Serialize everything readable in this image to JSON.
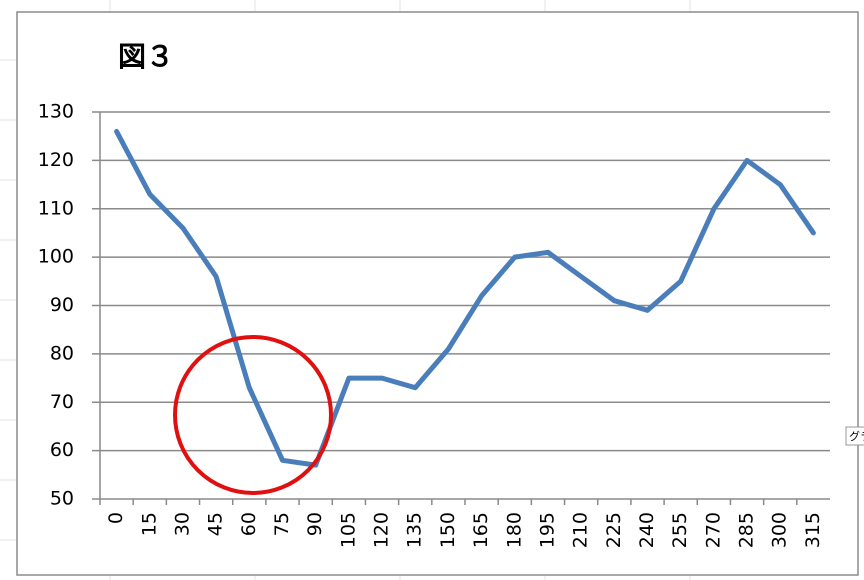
{
  "chart_data": {
    "type": "line",
    "title": "図３",
    "categories": [
      "0",
      "15",
      "30",
      "45",
      "60",
      "75",
      "90",
      "105",
      "120",
      "135",
      "150",
      "165",
      "180",
      "195",
      "210",
      "225",
      "240",
      "255",
      "270",
      "285",
      "300",
      "315"
    ],
    "values": [
      126,
      113,
      106,
      96,
      73,
      58,
      57,
      75,
      75,
      73,
      81,
      92,
      100,
      101,
      96,
      91,
      89,
      95,
      110,
      120,
      115,
      105
    ],
    "color": "#4a7ebb",
    "ylim": [
      50,
      130
    ],
    "yticks": [
      50,
      60,
      70,
      80,
      90,
      100,
      110,
      120,
      130
    ],
    "grid": true
  },
  "side_tag": "グラ"
}
